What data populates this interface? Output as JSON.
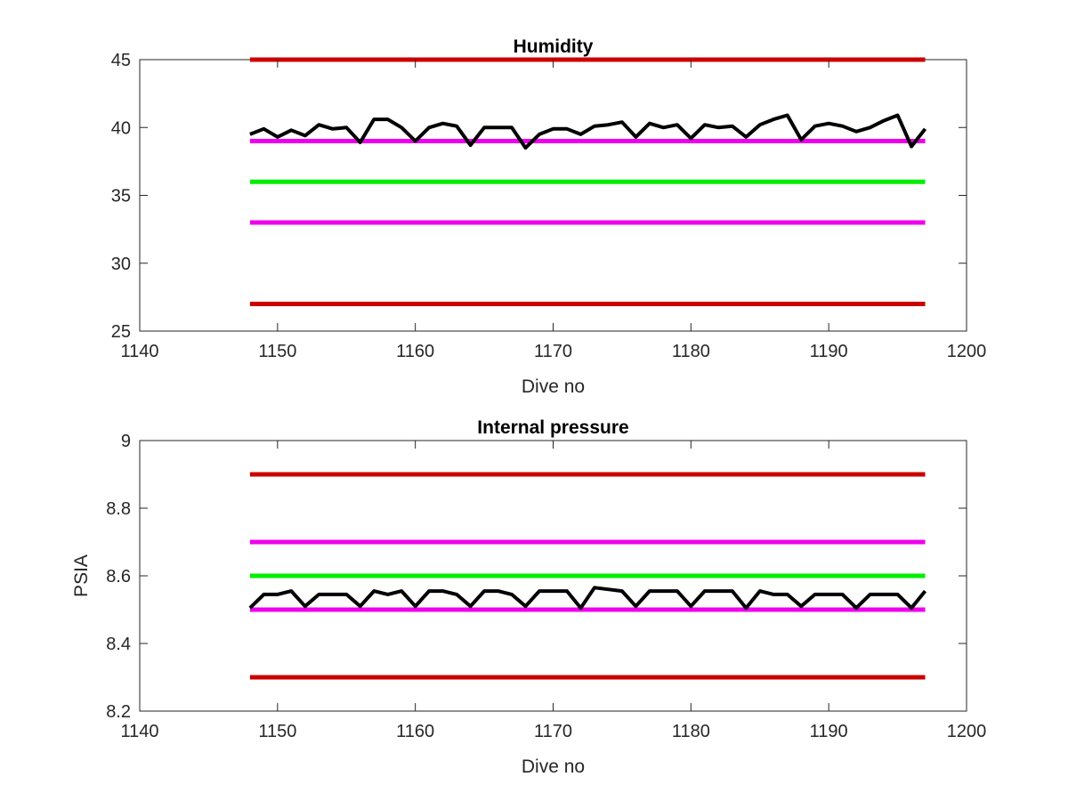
{
  "chart_data": [
    {
      "type": "line",
      "title": "Humidity",
      "xlabel": "Dive no",
      "ylabel": "",
      "xlim": [
        1140,
        1200
      ],
      "ylim": [
        25,
        45
      ],
      "xticks": [
        1140,
        1150,
        1160,
        1170,
        1180,
        1190,
        1200
      ],
      "yticks": [
        25,
        30,
        35,
        40,
        45
      ],
      "xtick_labels": [
        "1140",
        "1150",
        "1160",
        "1170",
        "1180",
        "1190",
        "1200"
      ],
      "ytick_labels": [
        "25",
        "30",
        "35",
        "40",
        "45"
      ],
      "grid": false,
      "reference_lines": [
        {
          "y": 45,
          "x": [
            1148,
            1197
          ],
          "color": "#cc0000"
        },
        {
          "y": 39,
          "x": [
            1148,
            1197
          ],
          "color": "#ee00ee"
        },
        {
          "y": 36,
          "x": [
            1148,
            1197
          ],
          "color": "#00ee00"
        },
        {
          "y": 33,
          "x": [
            1148,
            1197
          ],
          "color": "#ee00ee"
        },
        {
          "y": 27,
          "x": [
            1148,
            1197
          ],
          "color": "#cc0000"
        }
      ],
      "series": [
        {
          "color": "#000000",
          "x": [
            1148,
            1149,
            1150,
            1151,
            1152,
            1153,
            1154,
            1155,
            1156,
            1157,
            1158,
            1159,
            1160,
            1161,
            1162,
            1163,
            1164,
            1165,
            1166,
            1167,
            1168,
            1169,
            1170,
            1171,
            1172,
            1173,
            1174,
            1175,
            1176,
            1177,
            1178,
            1179,
            1180,
            1181,
            1182,
            1183,
            1184,
            1185,
            1186,
            1187,
            1188,
            1189,
            1190,
            1191,
            1192,
            1193,
            1194,
            1195,
            1196,
            1197
          ],
          "values": [
            39.5,
            39.9,
            39.3,
            39.8,
            39.4,
            40.2,
            39.9,
            40.0,
            38.9,
            40.6,
            40.6,
            40.0,
            39.0,
            40.0,
            40.3,
            40.1,
            38.7,
            40.0,
            40.0,
            40.0,
            38.5,
            39.5,
            39.9,
            39.9,
            39.5,
            40.1,
            40.2,
            40.4,
            39.3,
            40.3,
            40.0,
            40.2,
            39.2,
            40.2,
            40.0,
            40.1,
            39.3,
            40.2,
            40.6,
            40.9,
            39.1,
            40.1,
            40.3,
            40.1,
            39.7,
            40.0,
            40.5,
            40.9,
            38.6,
            39.9
          ]
        }
      ]
    },
    {
      "type": "line",
      "title": "Internal pressure",
      "xlabel": "Dive no",
      "ylabel": "PSIA",
      "xlim": [
        1140,
        1200
      ],
      "ylim": [
        8.2,
        9.0
      ],
      "xticks": [
        1140,
        1150,
        1160,
        1170,
        1180,
        1190,
        1200
      ],
      "yticks": [
        8.2,
        8.4,
        8.6,
        8.8,
        9.0
      ],
      "xtick_labels": [
        "1140",
        "1150",
        "1160",
        "1170",
        "1180",
        "1190",
        "1200"
      ],
      "ytick_labels": [
        "8.2",
        "8.4",
        "8.6",
        "8.8",
        "9"
      ],
      "grid": false,
      "reference_lines": [
        {
          "y": 8.9,
          "x": [
            1148,
            1197
          ],
          "color": "#cc0000"
        },
        {
          "y": 8.7,
          "x": [
            1148,
            1197
          ],
          "color": "#ee00ee"
        },
        {
          "y": 8.6,
          "x": [
            1148,
            1197
          ],
          "color": "#00ee00"
        },
        {
          "y": 8.5,
          "x": [
            1148,
            1197
          ],
          "color": "#ee00ee"
        },
        {
          "y": 8.3,
          "x": [
            1148,
            1197
          ],
          "color": "#cc0000"
        }
      ],
      "series": [
        {
          "color": "#000000",
          "x": [
            1148,
            1149,
            1150,
            1151,
            1152,
            1153,
            1154,
            1155,
            1156,
            1157,
            1158,
            1159,
            1160,
            1161,
            1162,
            1163,
            1164,
            1165,
            1166,
            1167,
            1168,
            1169,
            1170,
            1171,
            1172,
            1173,
            1174,
            1175,
            1176,
            1177,
            1178,
            1179,
            1180,
            1181,
            1182,
            1183,
            1184,
            1185,
            1186,
            1187,
            1188,
            1189,
            1190,
            1191,
            1192,
            1193,
            1194,
            1195,
            1196,
            1197
          ],
          "values": [
            8.505,
            8.545,
            8.545,
            8.555,
            8.51,
            8.545,
            8.545,
            8.545,
            8.51,
            8.555,
            8.545,
            8.555,
            8.51,
            8.555,
            8.555,
            8.545,
            8.51,
            8.555,
            8.555,
            8.545,
            8.51,
            8.555,
            8.555,
            8.555,
            8.505,
            8.565,
            8.56,
            8.555,
            8.51,
            8.555,
            8.555,
            8.555,
            8.51,
            8.555,
            8.555,
            8.555,
            8.505,
            8.555,
            8.545,
            8.545,
            8.51,
            8.545,
            8.545,
            8.545,
            8.505,
            8.545,
            8.545,
            8.545,
            8.505,
            8.555
          ]
        }
      ]
    }
  ]
}
